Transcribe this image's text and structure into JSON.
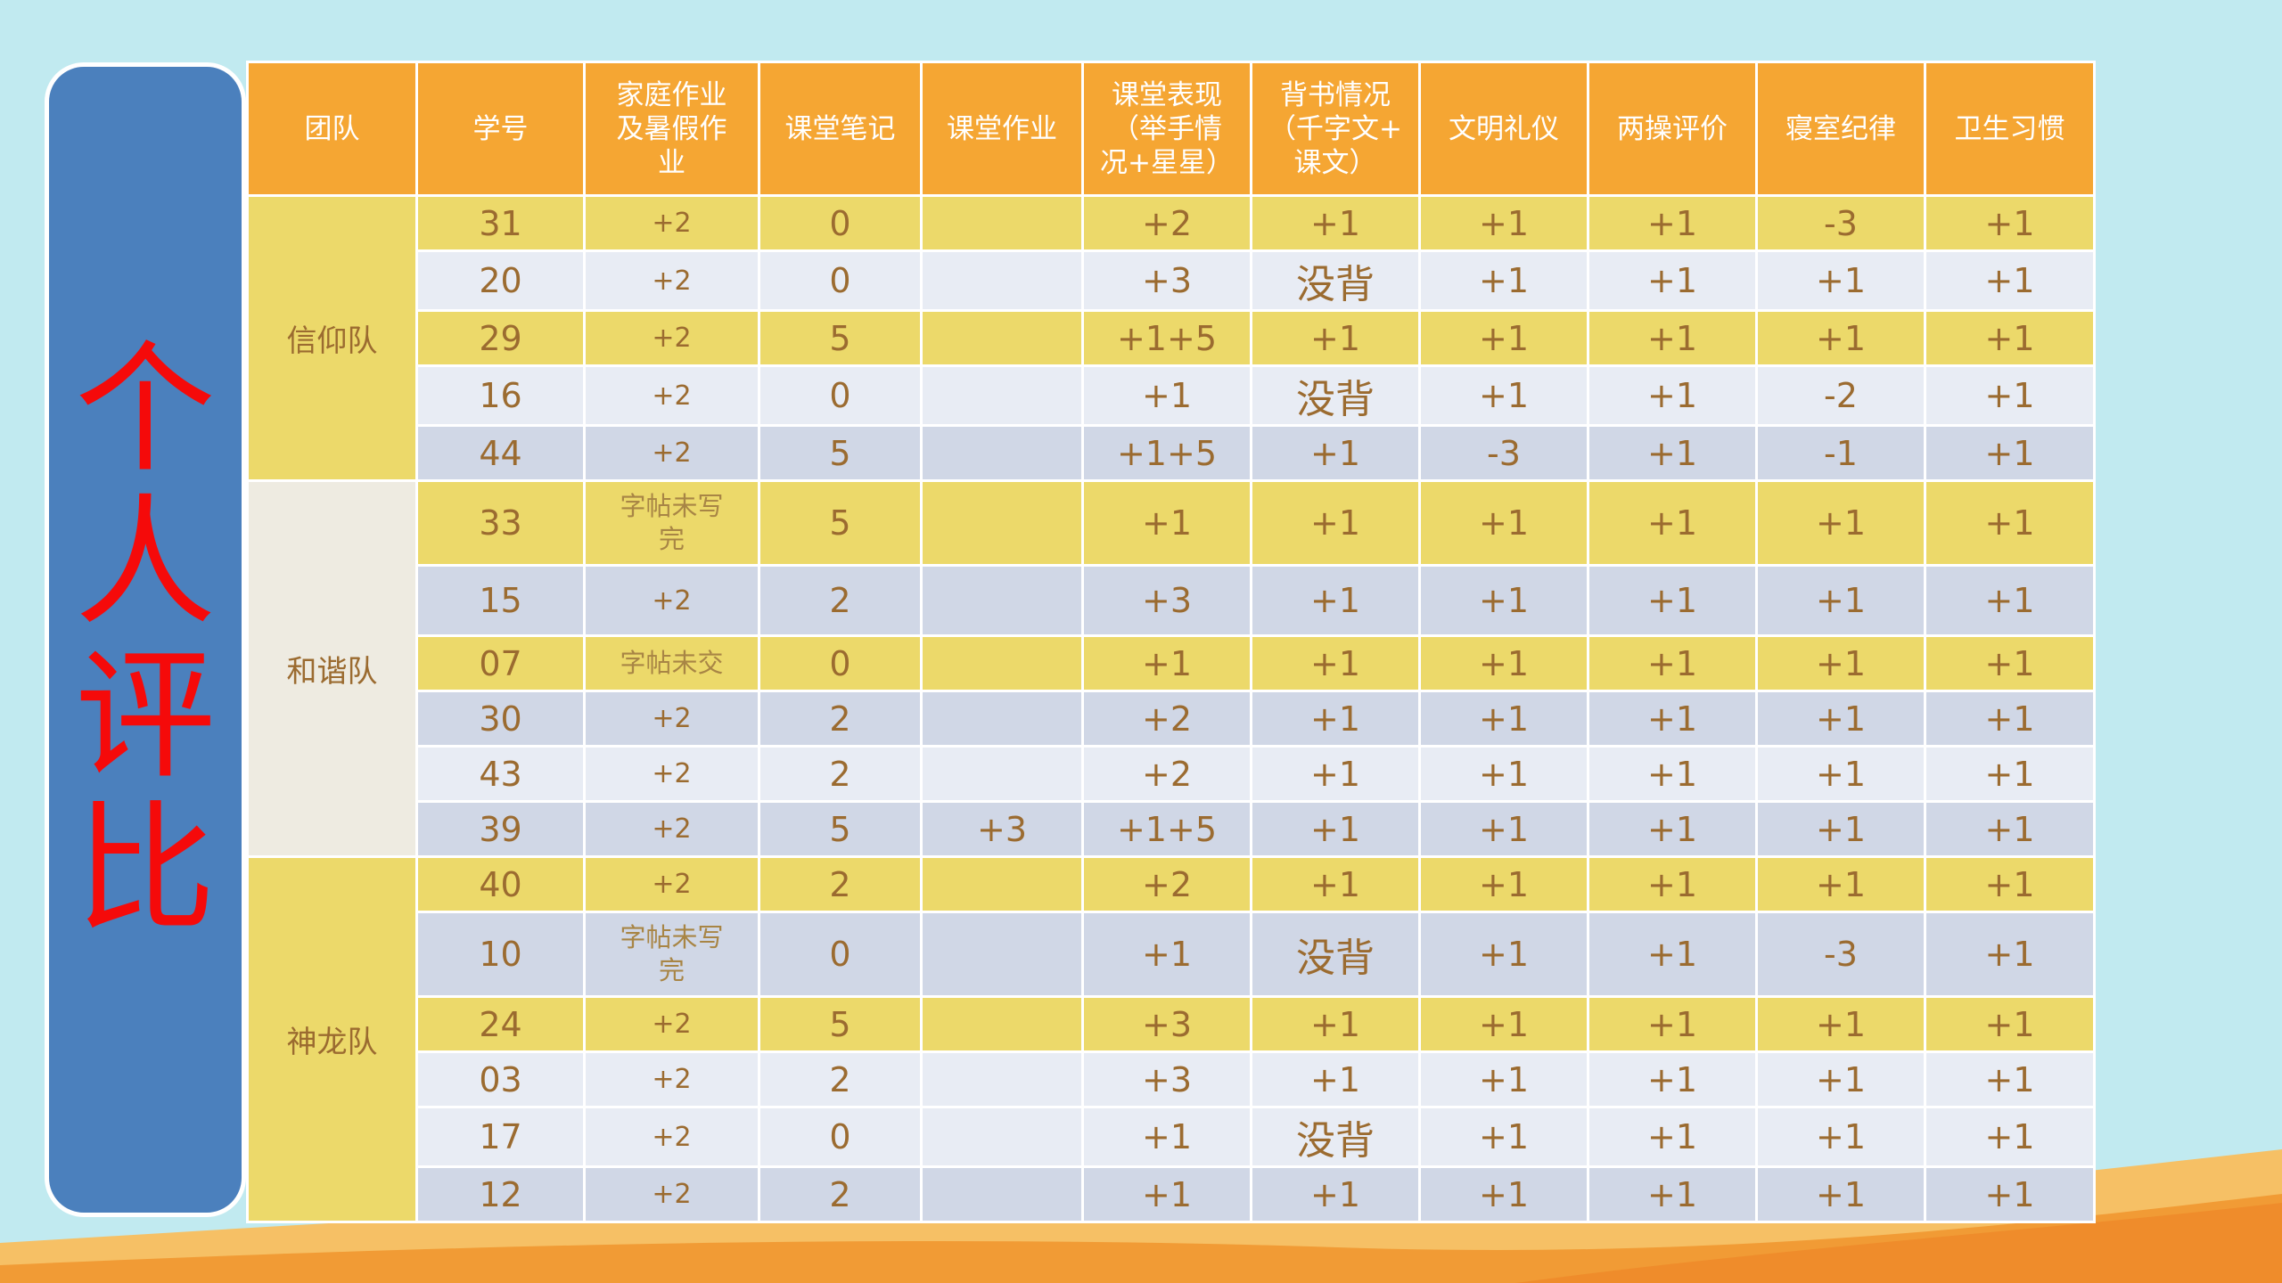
{
  "title": [
    "个",
    "人",
    "评",
    "比"
  ],
  "headers": [
    "团队",
    "学号",
    "家庭作业\n及暑假作\n业",
    "课堂笔记",
    "课堂作业",
    "课堂表现\n（举手情\n况+星星）",
    "背书情况\n（千字文+\n课文）",
    "文明礼仪",
    "两操评价",
    "寝室纪律",
    "卫生习惯"
  ],
  "teams": [
    "信仰队",
    "和谐队",
    "神龙队"
  ],
  "rows": [
    [
      "31",
      "+2",
      "0",
      "",
      "+2",
      "+1",
      "+1",
      "+1",
      "-3",
      "+1"
    ],
    [
      "20",
      "+2",
      "0",
      "",
      "+3",
      "没背",
      "+1",
      "+1",
      "+1",
      "+1"
    ],
    [
      "29",
      "+2",
      "5",
      "",
      "+1+5",
      "+1",
      "+1",
      "+1",
      "+1",
      "+1"
    ],
    [
      "16",
      "+2",
      "0",
      "",
      "+1",
      "没背",
      "+1",
      "+1",
      "-2",
      "+1"
    ],
    [
      "44",
      "+2",
      "5",
      "",
      "+1+5",
      "+1",
      "-3",
      "+1",
      "-1",
      "+1"
    ],
    [
      "33",
      "字帖未写\n完",
      "5",
      "",
      "+1",
      "+1",
      "+1",
      "+1",
      "+1",
      "+1"
    ],
    [
      "15",
      "+2",
      "2",
      "",
      "+3",
      "+1",
      "+1",
      "+1",
      "+1",
      "+1"
    ],
    [
      "07",
      "字帖未交",
      "0",
      "",
      "+1",
      "+1",
      "+1",
      "+1",
      "+1",
      "+1"
    ],
    [
      "30",
      "+2",
      "2",
      "",
      "+2",
      "+1",
      "+1",
      "+1",
      "+1",
      "+1"
    ],
    [
      "43",
      "+2",
      "2",
      "",
      "+2",
      "+1",
      "+1",
      "+1",
      "+1",
      "+1"
    ],
    [
      "39",
      "+2",
      "5",
      "+3",
      "+1+5",
      "+1",
      "+1",
      "+1",
      "+1",
      "+1"
    ],
    [
      "40",
      "+2",
      "2",
      "",
      "+2",
      "+1",
      "+1",
      "+1",
      "+1",
      "+1"
    ],
    [
      "10",
      "字帖未写\n完",
      "0",
      "",
      "+1",
      "没背",
      "+1",
      "+1",
      "-3",
      "+1"
    ],
    [
      "24",
      "+2",
      "5",
      "",
      "+3",
      "+1",
      "+1",
      "+1",
      "+1",
      "+1"
    ],
    [
      "03",
      "+2",
      "2",
      "",
      "+3",
      "+1",
      "+1",
      "+1",
      "+1",
      "+1"
    ],
    [
      "17",
      "+2",
      "0",
      "",
      "+1",
      "没背",
      "+1",
      "+1",
      "+1",
      "+1"
    ],
    [
      "12",
      "+2",
      "2",
      "",
      "+1",
      "+1",
      "+1",
      "+1",
      "+1",
      "+1"
    ]
  ],
  "colors": {
    "header_bg": "#f5a633",
    "title_panel_bg": "#4b80bd",
    "title_text": "#f50a0a",
    "negative_text": "#f50a0a",
    "row_yellow": "#ecd96a",
    "row_light": "#e8ecf4",
    "row_blue": "#d0d7e6",
    "background": "#c1eaf0"
  }
}
